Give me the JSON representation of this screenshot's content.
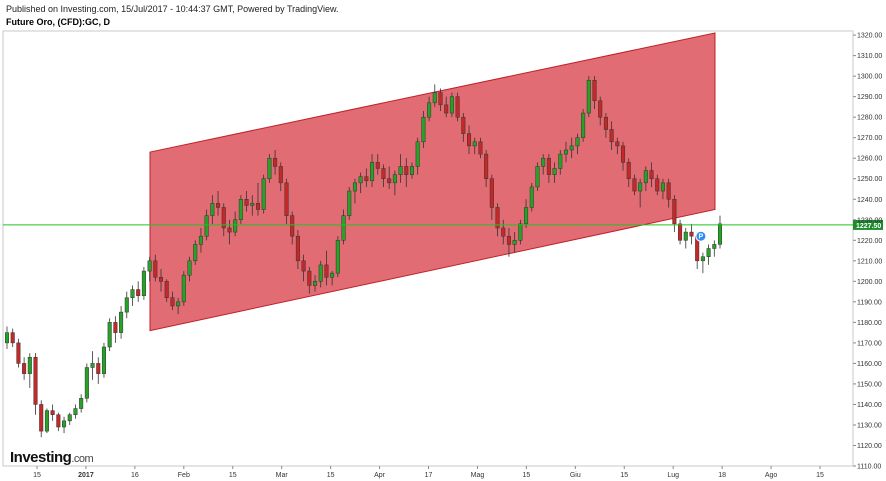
{
  "header": {
    "published": "Published on Investing.com, 15/Jul/2017 - 10:44:37 GMT, Powered by TradingView.",
    "instrument": "Future Oro, (CFD):GC, D"
  },
  "logo": {
    "brand": "Investing",
    "suffix": ".com"
  },
  "colors": {
    "up": "#26a226",
    "down": "#c62828",
    "channel_fill": "#d9434b",
    "channel_edge": "#c0212b",
    "price_line": "#22c322",
    "price_badge": "#1c8c2e",
    "marker": "#2f8ff0"
  },
  "chart_data": {
    "type": "candlestick",
    "title": "Future Oro, (CFD):GC, D",
    "ylim": [
      1110,
      1322
    ],
    "yticks": [
      1110,
      1120,
      1130,
      1140,
      1150,
      1160,
      1170,
      1180,
      1190,
      1200,
      1210,
      1220,
      1230,
      1240,
      1250,
      1260,
      1270,
      1280,
      1290,
      1300,
      1310,
      1320
    ],
    "ytick_labels": [
      "1110.00",
      "1120.00",
      "1130.00",
      "1140.00",
      "1150.00",
      "1160.00",
      "1170.00",
      "1180.00",
      "1190.00",
      "1200.00",
      "1210.00",
      "1220.00",
      "1230.00",
      "1240.00",
      "1250.00",
      "1260.00",
      "1270.00",
      "1280.00",
      "1290.00",
      "1300.00",
      "1310.00",
      "1320.00"
    ],
    "xticks": [
      {
        "label": "15",
        "bold": false
      },
      {
        "label": "2017",
        "bold": true
      },
      {
        "label": "16",
        "bold": false
      },
      {
        "label": "Feb",
        "bold": false
      },
      {
        "label": "15",
        "bold": false
      },
      {
        "label": "Mar",
        "bold": false
      },
      {
        "label": "15",
        "bold": false
      },
      {
        "label": "Apr",
        "bold": false
      },
      {
        "label": "17",
        "bold": false
      },
      {
        "label": "Mag",
        "bold": false
      },
      {
        "label": "15",
        "bold": false
      },
      {
        "label": "Giu",
        "bold": false
      },
      {
        "label": "15",
        "bold": false
      },
      {
        "label": "Lug",
        "bold": false
      },
      {
        "label": "18",
        "bold": false
      },
      {
        "label": "Ago",
        "bold": false
      },
      {
        "label": "15",
        "bold": false
      }
    ],
    "current_price": 1227.5,
    "current_price_label": "1227.50",
    "marker_label": "P",
    "channel": {
      "upper": [
        1263,
        1321
      ],
      "lower": [
        1176,
        1235
      ]
    },
    "candles": [
      [
        1170,
        1178,
        1167,
        1175
      ],
      [
        1175,
        1177,
        1168,
        1170
      ],
      [
        1170,
        1172,
        1158,
        1160
      ],
      [
        1160,
        1163,
        1152,
        1155
      ],
      [
        1155,
        1165,
        1148,
        1163
      ],
      [
        1163,
        1165,
        1135,
        1140
      ],
      [
        1140,
        1142,
        1124,
        1127
      ],
      [
        1127,
        1138,
        1126,
        1137
      ],
      [
        1137,
        1140,
        1132,
        1135
      ],
      [
        1135,
        1136,
        1127,
        1129
      ],
      [
        1129,
        1134,
        1126,
        1132
      ],
      [
        1132,
        1136,
        1130,
        1135
      ],
      [
        1135,
        1140,
        1133,
        1138
      ],
      [
        1138,
        1145,
        1136,
        1143
      ],
      [
        1143,
        1160,
        1141,
        1158
      ],
      [
        1158,
        1166,
        1152,
        1160
      ],
      [
        1160,
        1163,
        1150,
        1155
      ],
      [
        1155,
        1170,
        1153,
        1168
      ],
      [
        1168,
        1182,
        1166,
        1180
      ],
      [
        1180,
        1183,
        1170,
        1175
      ],
      [
        1175,
        1188,
        1172,
        1185
      ],
      [
        1185,
        1195,
        1182,
        1192
      ],
      [
        1192,
        1198,
        1188,
        1196
      ],
      [
        1196,
        1200,
        1190,
        1193
      ],
      [
        1193,
        1207,
        1191,
        1205
      ],
      [
        1205,
        1212,
        1200,
        1210
      ],
      [
        1210,
        1213,
        1200,
        1202
      ],
      [
        1202,
        1206,
        1195,
        1200
      ],
      [
        1200,
        1201,
        1190,
        1192
      ],
      [
        1192,
        1195,
        1186,
        1188
      ],
      [
        1188,
        1192,
        1184,
        1190
      ],
      [
        1190,
        1205,
        1188,
        1203
      ],
      [
        1203,
        1212,
        1200,
        1210
      ],
      [
        1210,
        1220,
        1208,
        1218
      ],
      [
        1218,
        1226,
        1214,
        1222
      ],
      [
        1222,
        1235,
        1220,
        1232
      ],
      [
        1232,
        1242,
        1228,
        1238
      ],
      [
        1238,
        1244,
        1232,
        1236
      ],
      [
        1236,
        1238,
        1222,
        1226
      ],
      [
        1226,
        1230,
        1218,
        1224
      ],
      [
        1224,
        1234,
        1222,
        1230
      ],
      [
        1230,
        1242,
        1228,
        1240
      ],
      [
        1240,
        1244,
        1234,
        1237
      ],
      [
        1237,
        1242,
        1232,
        1238
      ],
      [
        1238,
        1248,
        1232,
        1235
      ],
      [
        1235,
        1252,
        1233,
        1250
      ],
      [
        1250,
        1262,
        1248,
        1260
      ],
      [
        1260,
        1264,
        1252,
        1256
      ],
      [
        1256,
        1258,
        1244,
        1248
      ],
      [
        1248,
        1250,
        1228,
        1232
      ],
      [
        1232,
        1234,
        1218,
        1222
      ],
      [
        1222,
        1225,
        1206,
        1210
      ],
      [
        1210,
        1213,
        1200,
        1205
      ],
      [
        1205,
        1207,
        1194,
        1198
      ],
      [
        1198,
        1203,
        1195,
        1200
      ],
      [
        1200,
        1210,
        1197,
        1208
      ],
      [
        1208,
        1215,
        1198,
        1202
      ],
      [
        1202,
        1205,
        1198,
        1204
      ],
      [
        1204,
        1222,
        1202,
        1220
      ],
      [
        1220,
        1235,
        1218,
        1232
      ],
      [
        1232,
        1246,
        1230,
        1244
      ],
      [
        1244,
        1250,
        1238,
        1248
      ],
      [
        1248,
        1253,
        1243,
        1251
      ],
      [
        1251,
        1255,
        1246,
        1249
      ],
      [
        1249,
        1262,
        1246,
        1258
      ],
      [
        1258,
        1262,
        1252,
        1255
      ],
      [
        1255,
        1257,
        1246,
        1250
      ],
      [
        1250,
        1256,
        1245,
        1248
      ],
      [
        1248,
        1254,
        1242,
        1252
      ],
      [
        1252,
        1262,
        1248,
        1256
      ],
      [
        1256,
        1260,
        1246,
        1252
      ],
      [
        1252,
        1258,
        1250,
        1256
      ],
      [
        1256,
        1270,
        1252,
        1268
      ],
      [
        1268,
        1283,
        1265,
        1280
      ],
      [
        1280,
        1290,
        1278,
        1287
      ],
      [
        1287,
        1296,
        1285,
        1292
      ],
      [
        1292,
        1294,
        1283,
        1286
      ],
      [
        1286,
        1290,
        1280,
        1282
      ],
      [
        1282,
        1292,
        1280,
        1290
      ],
      [
        1290,
        1292,
        1278,
        1280
      ],
      [
        1280,
        1282,
        1268,
        1272
      ],
      [
        1272,
        1276,
        1262,
        1266
      ],
      [
        1266,
        1270,
        1262,
        1268
      ],
      [
        1268,
        1270,
        1260,
        1262
      ],
      [
        1262,
        1264,
        1246,
        1250
      ],
      [
        1250,
        1252,
        1230,
        1236
      ],
      [
        1236,
        1238,
        1222,
        1226
      ],
      [
        1226,
        1230,
        1218,
        1222
      ],
      [
        1222,
        1226,
        1212,
        1218
      ],
      [
        1218,
        1224,
        1214,
        1220
      ],
      [
        1220,
        1230,
        1218,
        1228
      ],
      [
        1228,
        1240,
        1226,
        1236
      ],
      [
        1236,
        1248,
        1234,
        1246
      ],
      [
        1246,
        1258,
        1244,
        1256
      ],
      [
        1256,
        1262,
        1252,
        1260
      ],
      [
        1260,
        1262,
        1248,
        1252
      ],
      [
        1252,
        1258,
        1248,
        1255
      ],
      [
        1255,
        1264,
        1252,
        1262
      ],
      [
        1262,
        1268,
        1258,
        1264
      ],
      [
        1264,
        1270,
        1260,
        1266
      ],
      [
        1266,
        1272,
        1262,
        1270
      ],
      [
        1270,
        1284,
        1268,
        1282
      ],
      [
        1282,
        1300,
        1280,
        1298
      ],
      [
        1298,
        1300,
        1284,
        1288
      ],
      [
        1288,
        1290,
        1276,
        1280
      ],
      [
        1280,
        1282,
        1270,
        1274
      ],
      [
        1274,
        1278,
        1264,
        1268
      ],
      [
        1268,
        1270,
        1262,
        1266
      ],
      [
        1266,
        1268,
        1254,
        1258
      ],
      [
        1258,
        1260,
        1246,
        1250
      ],
      [
        1250,
        1252,
        1242,
        1244
      ],
      [
        1244,
        1250,
        1236,
        1248
      ],
      [
        1248,
        1256,
        1244,
        1254
      ],
      [
        1254,
        1258,
        1246,
        1250
      ],
      [
        1250,
        1252,
        1242,
        1244
      ],
      [
        1244,
        1250,
        1240,
        1248
      ],
      [
        1248,
        1250,
        1236,
        1240
      ],
      [
        1240,
        1242,
        1224,
        1228
      ],
      [
        1228,
        1230,
        1218,
        1220
      ],
      [
        1220,
        1226,
        1216,
        1224
      ],
      [
        1224,
        1228,
        1218,
        1222
      ],
      [
        1222,
        1224,
        1206,
        1210
      ],
      [
        1210,
        1214,
        1204,
        1212
      ],
      [
        1212,
        1218,
        1208,
        1216
      ],
      [
        1216,
        1220,
        1212,
        1218
      ],
      [
        1218,
        1232,
        1216,
        1228
      ]
    ]
  }
}
